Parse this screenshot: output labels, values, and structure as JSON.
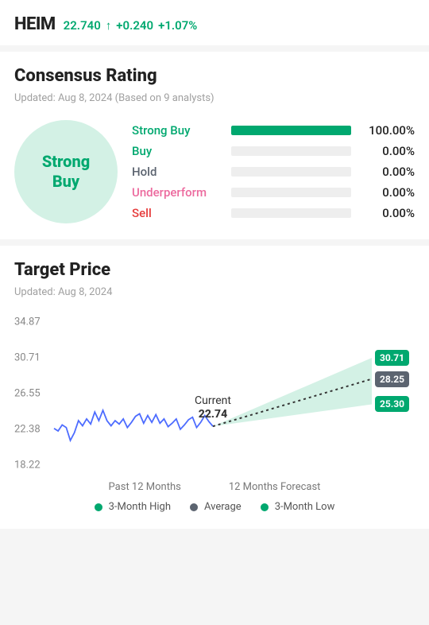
{
  "header": {
    "ticker": "HEIM",
    "price": "22.740",
    "change": "+0.240",
    "pct_change": "+1.07%",
    "up_color": "#00a86f"
  },
  "rating": {
    "title": "Consensus Rating",
    "updated": "Updated: Aug 8, 2024 (Based on 9 analysts)",
    "badge_text": "Strong Buy",
    "badge_bg": "#d3f1e5",
    "badge_text_color": "#00a86f",
    "rows": [
      {
        "label": "Strong Buy",
        "pct": "100.00%",
        "value": 100,
        "label_color": "#00a86f",
        "bar_color": "#00a86f"
      },
      {
        "label": "Buy",
        "pct": "0.00%",
        "value": 0,
        "label_color": "#00a86f",
        "bar_color": "#00a86f"
      },
      {
        "label": "Hold",
        "pct": "0.00%",
        "value": 0,
        "label_color": "#5c6470",
        "bar_color": "#5c6470"
      },
      {
        "label": "Underperform",
        "pct": "0.00%",
        "value": 0,
        "label_color": "#ec6a9e",
        "bar_color": "#ec6a9e"
      },
      {
        "label": "Sell",
        "pct": "0.00%",
        "value": 0,
        "label_color": "#e63c3c",
        "bar_color": "#e63c3c"
      }
    ]
  },
  "target": {
    "title": "Target Price",
    "updated": "Updated: Aug 8, 2024",
    "chart": {
      "type": "line_forecast",
      "yticks": [
        "34.87",
        "30.71",
        "26.55",
        "22.38",
        "18.22"
      ],
      "ylim": [
        18.22,
        34.87
      ],
      "past_color": "#4d6cff",
      "forecast_band_color": "#d3f1e5",
      "forecast_average_color": "#333333",
      "grid_color": "#e8e8e8",
      "background": "#ffffff",
      "current_label": "Current",
      "current_value": "22.74",
      "past_values": [
        22.5,
        22.2,
        22.9,
        22.6,
        21.1,
        22.0,
        23.4,
        22.8,
        23.6,
        23.0,
        24.4,
        23.4,
        24.6,
        23.4,
        22.8,
        23.4,
        23.0,
        23.6,
        22.6,
        23.2,
        23.9,
        24.2,
        23.1,
        24.0,
        23.2,
        24.1,
        23.1,
        23.6,
        22.7,
        23.1,
        23.6,
        22.4,
        22.9,
        23.5,
        23.8,
        22.6,
        23.2,
        24.0,
        23.3,
        22.74
      ],
      "forecast_high": 30.71,
      "forecast_avg": 28.25,
      "forecast_low": 25.3,
      "pills": [
        {
          "text": "30.71",
          "value": 30.71,
          "bg": "#00a86f"
        },
        {
          "text": "28.25",
          "value": 28.25,
          "bg": "#5c6470"
        },
        {
          "text": "25.30",
          "value": 25.3,
          "bg": "#00a86f"
        }
      ],
      "axis_labels": {
        "past": "Past 12 Months",
        "forecast": "12 Months Forecast"
      },
      "legend": [
        {
          "label": "3-Month High",
          "color": "#00a86f"
        },
        {
          "label": "Average",
          "color": "#5c6470"
        },
        {
          "label": "3-Month Low",
          "color": "#00a86f"
        }
      ]
    }
  }
}
